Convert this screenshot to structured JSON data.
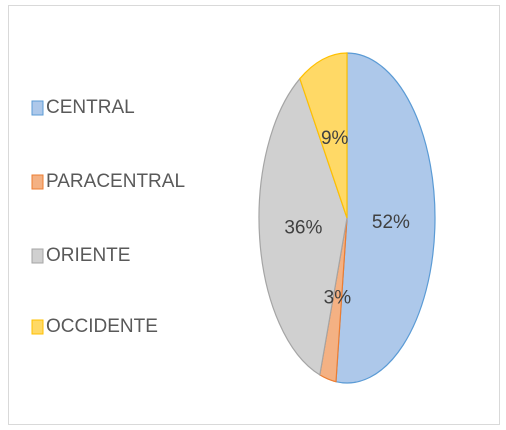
{
  "chart_data": {
    "type": "pie",
    "categories": [
      "CENTRAL",
      "PARACENTRAL",
      "ORIENTE",
      "OCCIDENTE"
    ],
    "values": [
      52,
      3,
      36,
      9
    ],
    "value_labels": [
      "52%",
      "3%",
      "36%",
      "9%"
    ],
    "colors": [
      "#adc8ea",
      "#f4b183",
      "#d0d0d0",
      "#ffd966"
    ],
    "edge_colors": [
      "#5b9bd5",
      "#ed7d31",
      "#a5a5a5",
      "#ffc000"
    ],
    "legend": "left"
  }
}
